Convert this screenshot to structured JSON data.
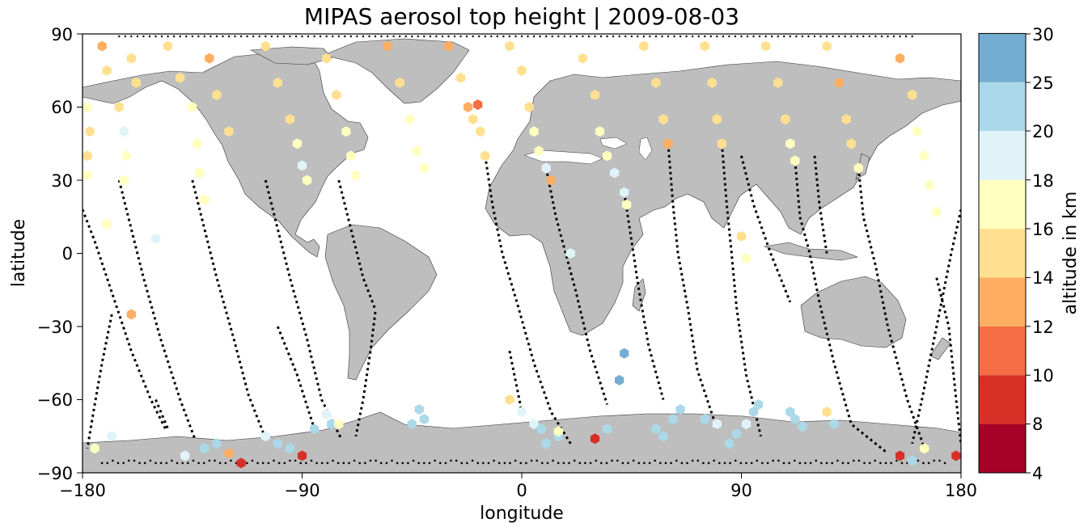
{
  "title": "MIPAS aerosol top height | 2009-08-03",
  "xlabel": "longitude",
  "ylabel": "latitude",
  "colorbar_label": "altitude in km",
  "x_ticks": [
    "−180",
    "−90",
    "0",
    "90",
    "180"
  ],
  "y_ticks": [
    "90",
    "60",
    "30",
    "0",
    "−30",
    "−60",
    "−90"
  ],
  "colorbar_ticks": [
    "30",
    "25",
    "20",
    "18",
    "16",
    "14",
    "12",
    "10",
    "8",
    "4"
  ],
  "colors": {
    "land": "#bebebe",
    "ocean": "#ffffff",
    "track": "#000000",
    "bins": [
      "#a50026",
      "#d73027",
      "#f46d43",
      "#fdae61",
      "#fee090",
      "#ffffbf",
      "#e0f3f8",
      "#abd9e9",
      "#74add1",
      "#313695"
    ]
  },
  "chart_data": {
    "type": "scatter",
    "projection": "plate-carree",
    "title": "MIPAS aerosol top height | 2009-08-03",
    "xlabel": "longitude",
    "ylabel": "latitude",
    "xlim": [
      -180,
      180
    ],
    "ylim": [
      -90,
      90
    ],
    "colorbar": {
      "label": "altitude in km",
      "boundaries": [
        4,
        8,
        10,
        12,
        14,
        16,
        18,
        20,
        25,
        30
      ],
      "colors": [
        "#a50026",
        "#d73027",
        "#f46d43",
        "#fdae61",
        "#fee090",
        "#ffffbf",
        "#e0f3f8",
        "#abd9e9",
        "#74add1",
        "#313695"
      ]
    },
    "points": [
      [
        -178,
        60,
        17
      ],
      [
        -177,
        50,
        15
      ],
      [
        -178,
        40,
        15
      ],
      [
        -178,
        32,
        17
      ],
      [
        -172,
        85,
        13
      ],
      [
        -170,
        75,
        14
      ],
      [
        -165,
        60,
        15
      ],
      [
        -163,
        50,
        18
      ],
      [
        -162,
        40,
        17
      ],
      [
        -163,
        30,
        17
      ],
      [
        -160,
        80,
        15
      ],
      [
        -158,
        70,
        15
      ],
      [
        -145,
        85,
        14
      ],
      [
        -140,
        72,
        15
      ],
      [
        -135,
        60,
        17
      ],
      [
        -133,
        45,
        17
      ],
      [
        -132,
        33,
        17
      ],
      [
        -130,
        22,
        16
      ],
      [
        -128,
        80,
        13
      ],
      [
        -125,
        65,
        14
      ],
      [
        -120,
        50,
        14
      ],
      [
        -105,
        85,
        14
      ],
      [
        -100,
        70,
        15
      ],
      [
        -95,
        55,
        15
      ],
      [
        -92,
        45,
        16
      ],
      [
        -90,
        36,
        18
      ],
      [
        -88,
        30,
        17
      ],
      [
        -80,
        80,
        15
      ],
      [
        -76,
        65,
        15
      ],
      [
        -72,
        50,
        16
      ],
      [
        -70,
        40,
        17
      ],
      [
        -68,
        32,
        17
      ],
      [
        -55,
        85,
        13
      ],
      [
        -50,
        70,
        15
      ],
      [
        -46,
        55,
        16
      ],
      [
        -43,
        42,
        17
      ],
      [
        -40,
        35,
        17
      ],
      [
        -30,
        85,
        13
      ],
      [
        -25,
        72,
        14
      ],
      [
        -22,
        60,
        13
      ],
      [
        -20,
        55,
        15
      ],
      [
        -18,
        61,
        11
      ],
      [
        -17,
        50,
        14
      ],
      [
        -15,
        40,
        15
      ],
      [
        -5,
        85,
        15
      ],
      [
        0,
        75,
        15
      ],
      [
        3,
        60,
        15
      ],
      [
        5,
        50,
        17
      ],
      [
        7,
        42,
        17
      ],
      [
        10,
        35,
        18
      ],
      [
        12,
        30,
        12
      ],
      [
        25,
        80,
        15
      ],
      [
        30,
        65,
        15
      ],
      [
        32,
        50,
        16
      ],
      [
        35,
        40,
        17
      ],
      [
        38,
        33,
        18
      ],
      [
        42,
        25,
        19
      ],
      [
        43,
        20,
        17
      ],
      [
        50,
        85,
        15
      ],
      [
        55,
        70,
        15
      ],
      [
        58,
        55,
        15
      ],
      [
        60,
        45,
        13
      ],
      [
        75,
        85,
        14
      ],
      [
        78,
        70,
        15
      ],
      [
        80,
        55,
        15
      ],
      [
        82,
        45,
        14
      ],
      [
        100,
        85,
        15
      ],
      [
        105,
        70,
        14
      ],
      [
        108,
        55,
        15
      ],
      [
        110,
        45,
        16
      ],
      [
        112,
        38,
        17
      ],
      [
        125,
        85,
        14
      ],
      [
        130,
        70,
        13
      ],
      [
        133,
        55,
        14
      ],
      [
        135,
        45,
        15
      ],
      [
        138,
        35,
        17
      ],
      [
        155,
        80,
        13
      ],
      [
        160,
        65,
        15
      ],
      [
        162,
        50,
        16
      ],
      [
        165,
        40,
        17
      ],
      [
        167,
        28,
        17
      ],
      [
        170,
        17,
        16
      ],
      [
        -138,
        -83,
        18
      ],
      [
        -130,
        -80,
        20
      ],
      [
        -125,
        -78,
        20
      ],
      [
        -120,
        -82,
        12
      ],
      [
        -115,
        -86,
        9
      ],
      [
        -105,
        -75,
        19
      ],
      [
        -100,
        -78,
        20
      ],
      [
        -95,
        -80,
        21
      ],
      [
        -85,
        -72,
        20
      ],
      [
        -80,
        -66,
        19
      ],
      [
        -78,
        -70,
        20
      ],
      [
        -75,
        -70,
        17
      ],
      [
        -90,
        -83,
        9
      ],
      [
        -45,
        -70,
        20
      ],
      [
        -42,
        -64,
        21
      ],
      [
        -40,
        -68,
        20
      ],
      [
        -5,
        -60,
        15
      ],
      [
        0,
        -65,
        18
      ],
      [
        5,
        -70,
        19
      ],
      [
        8,
        -72,
        20
      ],
      [
        10,
        -78,
        21
      ],
      [
        15,
        -75,
        20
      ],
      [
        30,
        -76,
        9
      ],
      [
        35,
        -72,
        21
      ],
      [
        40,
        -52,
        25
      ],
      [
        42,
        -41,
        26
      ],
      [
        55,
        -72,
        20
      ],
      [
        58,
        -75,
        20
      ],
      [
        62,
        -68,
        21
      ],
      [
        65,
        -64,
        20
      ],
      [
        75,
        -68,
        20
      ],
      [
        80,
        -70,
        18
      ],
      [
        85,
        -78,
        20
      ],
      [
        88,
        -74,
        20
      ],
      [
        92,
        -70,
        19
      ],
      [
        95,
        -65,
        20
      ],
      [
        97,
        -62,
        21
      ],
      [
        110,
        -65,
        20
      ],
      [
        112,
        -68,
        20
      ],
      [
        115,
        -71,
        21
      ],
      [
        125,
        -65,
        14
      ],
      [
        128,
        -70,
        21
      ],
      [
        155,
        -83,
        9
      ],
      [
        160,
        -85,
        20
      ],
      [
        165,
        -80,
        17
      ],
      [
        178,
        -83,
        9
      ],
      [
        -160,
        -25,
        13
      ],
      [
        -175,
        -80,
        16
      ],
      [
        -168,
        -75,
        18
      ],
      [
        90,
        7,
        15
      ],
      [
        92,
        -2,
        16
      ],
      [
        20,
        0,
        18
      ],
      [
        15,
        -73,
        17
      ],
      [
        -150,
        6,
        18
      ],
      [
        -170,
        12,
        16
      ]
    ],
    "tracks": [
      [
        [
          -180,
          18
        ],
        [
          -175,
          5
        ],
        [
          -170,
          -10
        ],
        [
          -165,
          -25
        ],
        [
          -160,
          -40
        ],
        [
          -152,
          -60
        ],
        [
          -146,
          -72
        ]
      ],
      [
        [
          -165,
          30
        ],
        [
          -160,
          10
        ],
        [
          -155,
          -10
        ],
        [
          -148,
          -35
        ],
        [
          -140,
          -60
        ],
        [
          -134,
          -76
        ]
      ],
      [
        [
          -135,
          30
        ],
        [
          -130,
          10
        ],
        [
          -125,
          -10
        ],
        [
          -118,
          -35
        ],
        [
          -112,
          -58
        ],
        [
          -105,
          -76
        ]
      ],
      [
        [
          -105,
          30
        ],
        [
          -100,
          10
        ],
        [
          -95,
          -10
        ],
        [
          -88,
          -35
        ],
        [
          -82,
          -60
        ],
        [
          -74,
          -76
        ]
      ],
      [
        [
          -75,
          30
        ],
        [
          -70,
          10
        ],
        [
          -65,
          -10
        ],
        [
          -60,
          -23
        ]
      ],
      [
        [
          -15,
          40
        ],
        [
          -12,
          20
        ],
        [
          -8,
          0
        ],
        [
          -2,
          -20
        ],
        [
          5,
          -45
        ],
        [
          12,
          -65
        ],
        [
          20,
          -78
        ]
      ],
      [
        [
          10,
          35
        ],
        [
          14,
          15
        ],
        [
          18,
          0
        ],
        [
          22,
          -15
        ],
        [
          28,
          -40
        ],
        [
          35,
          -62
        ]
      ],
      [
        [
          42,
          25
        ],
        [
          45,
          5
        ],
        [
          48,
          -15
        ],
        [
          52,
          -38
        ],
        [
          58,
          -60
        ]
      ],
      [
        [
          60,
          45
        ],
        [
          62,
          20
        ],
        [
          64,
          0
        ],
        [
          68,
          -22
        ],
        [
          72,
          -48
        ],
        [
          80,
          -72
        ]
      ],
      [
        [
          82,
          45
        ],
        [
          84,
          20
        ],
        [
          86,
          0
        ],
        [
          88,
          -22
        ],
        [
          92,
          -50
        ],
        [
          98,
          -75
        ]
      ],
      [
        [
          112,
          38
        ],
        [
          114,
          15
        ],
        [
          118,
          0
        ],
        [
          122,
          -20
        ],
        [
          128,
          -45
        ],
        [
          135,
          -70
        ],
        [
          150,
          -82
        ]
      ],
      [
        [
          138,
          35
        ],
        [
          140,
          15
        ],
        [
          145,
          -5
        ],
        [
          150,
          -30
        ],
        [
          158,
          -60
        ],
        [
          165,
          -80
        ]
      ],
      [
        [
          180,
          18
        ],
        [
          176,
          0
        ],
        [
          172,
          -20
        ],
        [
          168,
          -40
        ],
        [
          164,
          -60
        ],
        [
          160,
          -78
        ]
      ],
      [
        [
          -168,
          -25
        ],
        [
          -172,
          -45
        ],
        [
          -175,
          -62
        ],
        [
          -178,
          -80
        ]
      ],
      [
        [
          -150,
          -60
        ],
        [
          -145,
          -72
        ]
      ],
      [
        [
          -100,
          -30
        ],
        [
          -92,
          -50
        ],
        [
          -85,
          -72
        ]
      ],
      [
        [
          -60,
          -24
        ],
        [
          -62,
          -40
        ],
        [
          -65,
          -60
        ],
        [
          -68,
          -75
        ]
      ],
      [
        [
          -5,
          -40
        ],
        [
          -2,
          -55
        ],
        [
          0,
          -65
        ]
      ],
      [
        [
          170,
          -10
        ],
        [
          175,
          -30
        ],
        [
          178,
          -60
        ],
        [
          180,
          -78
        ]
      ],
      [
        [
          90,
          40
        ],
        [
          95,
          20
        ],
        [
          102,
          0
        ],
        [
          110,
          -20
        ]
      ],
      [
        [
          120,
          40
        ],
        [
          122,
          20
        ],
        [
          125,
          0
        ]
      ]
    ]
  }
}
